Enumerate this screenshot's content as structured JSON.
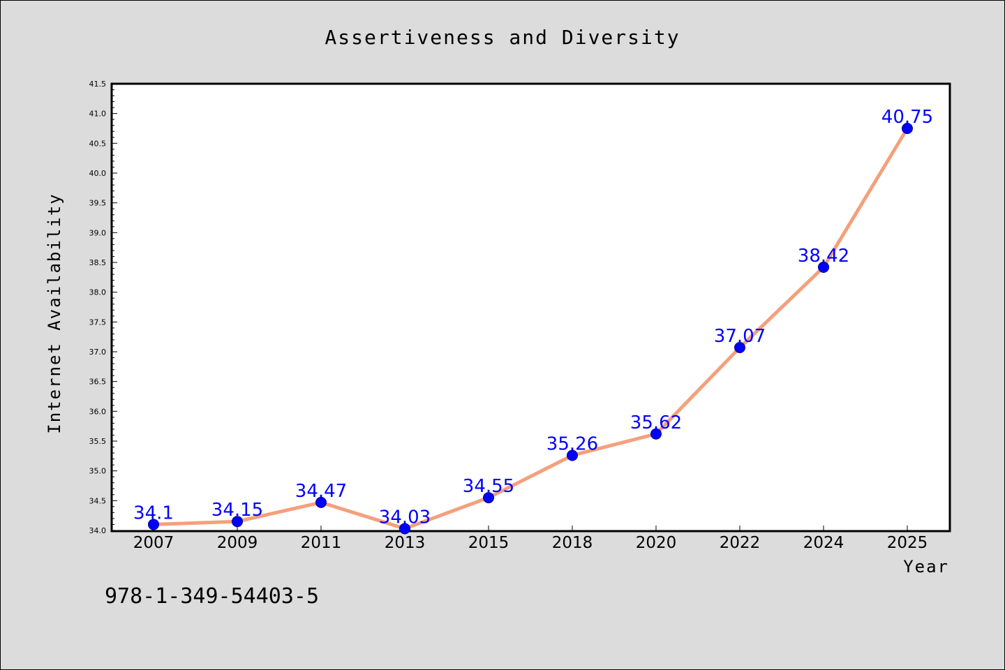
{
  "chart_data": {
    "type": "line",
    "title": "Assertiveness and Diversity",
    "xlabel": "Year",
    "ylabel": "Internet Availability",
    "categories": [
      "2007",
      "2009",
      "2011",
      "2013",
      "2015",
      "2018",
      "2020",
      "2022",
      "2024",
      "2025"
    ],
    "series": [
      {
        "values": [
          34.1,
          34.15,
          34.47,
          34.03,
          34.55,
          35.26,
          35.62,
          37.07,
          38.42,
          40.75
        ],
        "data_labels": [
          "34.1",
          "34.15",
          "34.47",
          "34.03",
          "34.55",
          "35.26",
          "35.62",
          "37.07",
          "38.42",
          "40.75"
        ]
      }
    ],
    "ylim": [
      34.0,
      41.5
    ],
    "yticks": [
      "34.0",
      "34.5",
      "35.0",
      "35.5",
      "36.0",
      "36.5",
      "37.0",
      "37.5",
      "38.0",
      "38.5",
      "39.0",
      "39.5",
      "40.0",
      "40.5",
      "41.0",
      "41.5"
    ],
    "grid": false,
    "line_color": "#f4a07c",
    "marker_color": "#0000ff",
    "label_color": "#0000ff",
    "background_color": "#dcdcdc",
    "plot_background_color": "#ffffff"
  },
  "annotation": {
    "isbn": "978-1-349-54403-5"
  }
}
